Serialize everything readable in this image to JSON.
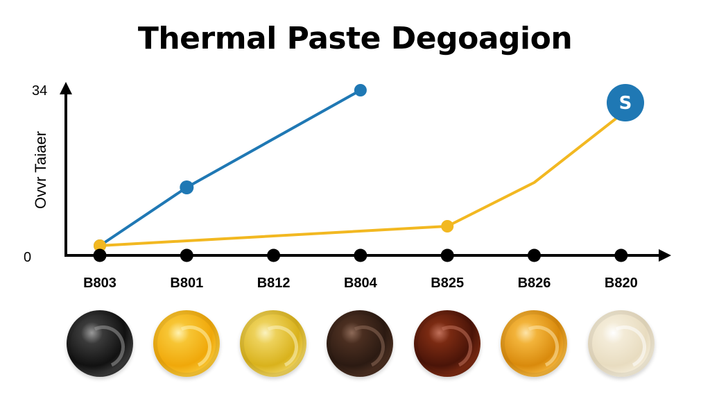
{
  "title": "Thermal Paste Degoagion",
  "chart_data": {
    "type": "line",
    "ylabel": "Ovvr Taiaer",
    "xlabel": "",
    "ylim": [
      0,
      34
    ],
    "yticks": [
      "0",
      "34"
    ],
    "categories": [
      "B803",
      "B801",
      "B812",
      "B804",
      "B825",
      "B826",
      "B820"
    ],
    "series": [
      {
        "color": "#1f78b4",
        "values": [
          2,
          14,
          null,
          34,
          null,
          null,
          null
        ]
      },
      {
        "color": "#f2b821",
        "values": [
          2,
          null,
          null,
          null,
          6,
          15,
          29
        ]
      }
    ],
    "badge": {
      "text": "S",
      "color": "#1f78b4"
    },
    "grid": false
  },
  "swatches": [
    {
      "name": "black",
      "base": "#111111",
      "mid": "#3a3a3a",
      "hi": "#9a9a9a"
    },
    {
      "name": "orange-yellow",
      "base": "#f0a80a",
      "mid": "#f7c534",
      "hi": "#fff2b0"
    },
    {
      "name": "yellow",
      "base": "#d9b21c",
      "mid": "#edd15a",
      "hi": "#fbf2bf"
    },
    {
      "name": "dark-brown",
      "base": "#2b1a12",
      "mid": "#4a2e20",
      "hi": "#8d6a58"
    },
    {
      "name": "red-brown",
      "base": "#4a1408",
      "mid": "#7a2a12",
      "hi": "#c0705a"
    },
    {
      "name": "amber",
      "base": "#d98a0c",
      "mid": "#f2b33a",
      "hi": "#fde4a8"
    },
    {
      "name": "cream",
      "base": "#e8dcc0",
      "mid": "#f3ebd7",
      "hi": "#ffffff"
    }
  ]
}
